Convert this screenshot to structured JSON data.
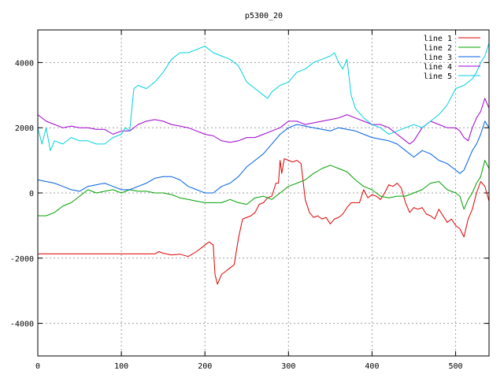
{
  "chart_data": {
    "type": "line",
    "title": "p5300_20",
    "xlabel": "",
    "ylabel": "",
    "xlim": [
      0,
      540
    ],
    "ylim": [
      -5000,
      5000
    ],
    "x_ticks": [
      0,
      100,
      200,
      300,
      400,
      500
    ],
    "y_ticks": [
      -4000,
      -2000,
      0,
      2000,
      4000
    ],
    "x_tick_labels": [
      "0",
      "100",
      "200",
      "300",
      "400",
      "500"
    ],
    "y_tick_labels": [
      "-4000",
      "-2000",
      "0",
      "2000",
      "4000"
    ],
    "grid": true,
    "legend_position": "top-right",
    "series": [
      {
        "name": "line 1",
        "color": "#e00000",
        "x": [
          0,
          30,
          60,
          90,
          120,
          140,
          145,
          150,
          160,
          170,
          180,
          190,
          200,
          205,
          210,
          212,
          215,
          220,
          225,
          230,
          235,
          240,
          245,
          250,
          255,
          260,
          265,
          270,
          275,
          280,
          285,
          288,
          290,
          292,
          295,
          300,
          305,
          310,
          315,
          320,
          325,
          330,
          335,
          340,
          345,
          350,
          355,
          360,
          365,
          370,
          375,
          380,
          385,
          390,
          395,
          400,
          405,
          410,
          415,
          420,
          425,
          430,
          435,
          440,
          445,
          450,
          455,
          460,
          465,
          470,
          475,
          480,
          485,
          490,
          495,
          500,
          505,
          510,
          515,
          520,
          525,
          530,
          535,
          540
        ],
        "values": [
          -1870,
          -1870,
          -1870,
          -1870,
          -1870,
          -1870,
          -1800,
          -1850,
          -1900,
          -1880,
          -1950,
          -1800,
          -1600,
          -1500,
          -1600,
          -2500,
          -2800,
          -2500,
          -2400,
          -2300,
          -2200,
          -1400,
          -800,
          -750,
          -700,
          -600,
          -350,
          -300,
          -150,
          -100,
          300,
          300,
          1000,
          600,
          1050,
          1000,
          950,
          1000,
          900,
          -200,
          -600,
          -750,
          -700,
          -800,
          -750,
          -950,
          -800,
          -750,
          -650,
          -450,
          -300,
          -300,
          -300,
          100,
          -150,
          -50,
          -100,
          -200,
          0,
          250,
          200,
          300,
          150,
          -300,
          -600,
          -450,
          -500,
          -450,
          -650,
          -700,
          -800,
          -500,
          -700,
          -900,
          -800,
          -1000,
          -1100,
          -1350,
          -800,
          -500,
          0,
          350,
          200,
          -250
        ]
      },
      {
        "name": "line 2",
        "color": "#00a000",
        "x": [
          0,
          10,
          20,
          30,
          40,
          50,
          60,
          70,
          80,
          90,
          100,
          110,
          120,
          130,
          140,
          150,
          160,
          170,
          180,
          190,
          200,
          210,
          220,
          230,
          240,
          250,
          260,
          270,
          280,
          290,
          300,
          310,
          320,
          330,
          340,
          350,
          360,
          370,
          380,
          390,
          400,
          410,
          420,
          430,
          440,
          450,
          460,
          470,
          480,
          490,
          500,
          505,
          510,
          515,
          520,
          525,
          530,
          535,
          540
        ],
        "values": [
          -700,
          -700,
          -600,
          -400,
          -300,
          -100,
          100,
          0,
          50,
          100,
          0,
          100,
          50,
          50,
          0,
          0,
          -50,
          -150,
          -200,
          -250,
          -300,
          -300,
          -300,
          -200,
          -300,
          -350,
          -150,
          -100,
          -200,
          0,
          200,
          300,
          400,
          600,
          750,
          850,
          750,
          650,
          400,
          200,
          100,
          -100,
          -150,
          -100,
          -100,
          0,
          100,
          300,
          350,
          100,
          0,
          -100,
          -500,
          -200,
          0,
          300,
          500,
          1000,
          750
        ]
      },
      {
        "name": "line 3",
        "color": "#0060e0",
        "x": [
          0,
          10,
          20,
          30,
          40,
          50,
          60,
          70,
          80,
          90,
          100,
          110,
          120,
          130,
          140,
          150,
          160,
          170,
          180,
          190,
          200,
          210,
          220,
          230,
          240,
          250,
          260,
          270,
          280,
          290,
          300,
          310,
          320,
          330,
          340,
          350,
          360,
          370,
          380,
          390,
          400,
          410,
          420,
          430,
          440,
          450,
          460,
          470,
          480,
          490,
          500,
          505,
          510,
          515,
          520,
          525,
          530,
          535,
          540
        ],
        "values": [
          400,
          350,
          300,
          200,
          100,
          50,
          200,
          250,
          300,
          200,
          100,
          100,
          200,
          300,
          450,
          500,
          500,
          400,
          200,
          100,
          0,
          0,
          200,
          300,
          500,
          800,
          1000,
          1200,
          1500,
          1800,
          2000,
          2100,
          2050,
          2000,
          1950,
          1900,
          2000,
          1950,
          1900,
          1800,
          1700,
          1650,
          1600,
          1500,
          1300,
          1100,
          1300,
          1200,
          1000,
          900,
          700,
          600,
          700,
          1000,
          1300,
          1500,
          1800,
          2200,
          2000
        ]
      },
      {
        "name": "line 4",
        "color": "#a000d0",
        "x": [
          0,
          10,
          20,
          30,
          40,
          50,
          60,
          70,
          80,
          90,
          100,
          110,
          120,
          130,
          140,
          150,
          160,
          170,
          180,
          190,
          200,
          210,
          220,
          230,
          240,
          250,
          260,
          270,
          280,
          290,
          300,
          310,
          320,
          330,
          340,
          350,
          360,
          370,
          380,
          390,
          400,
          410,
          420,
          430,
          440,
          445,
          450,
          455,
          460,
          470,
          480,
          490,
          500,
          505,
          510,
          515,
          520,
          525,
          530,
          535,
          540
        ],
        "values": [
          2400,
          2200,
          2100,
          2000,
          2050,
          2000,
          2000,
          1950,
          1950,
          1800,
          1900,
          1900,
          2100,
          2200,
          2250,
          2200,
          2100,
          2050,
          2000,
          1900,
          1800,
          1750,
          1600,
          1550,
          1600,
          1700,
          1700,
          1800,
          1900,
          2000,
          2200,
          2200,
          2100,
          2150,
          2200,
          2250,
          2300,
          2400,
          2300,
          2200,
          2100,
          2100,
          2000,
          1800,
          1600,
          1500,
          1600,
          1800,
          2000,
          2200,
          2100,
          2000,
          2000,
          1900,
          1700,
          1600,
          2000,
          2300,
          2500,
          2900,
          2600
        ]
      },
      {
        "name": "line 5",
        "color": "#00d0e0",
        "x": [
          0,
          5,
          10,
          15,
          20,
          30,
          40,
          50,
          60,
          70,
          80,
          90,
          100,
          105,
          110,
          115,
          120,
          130,
          140,
          150,
          160,
          170,
          180,
          190,
          200,
          210,
          220,
          230,
          240,
          250,
          255,
          260,
          270,
          275,
          280,
          290,
          300,
          310,
          320,
          330,
          340,
          350,
          355,
          360,
          365,
          370,
          375,
          380,
          390,
          400,
          410,
          420,
          430,
          440,
          450,
          460,
          470,
          480,
          490,
          500,
          510,
          520,
          525,
          530,
          535,
          540
        ],
        "values": [
          2000,
          1500,
          2000,
          1300,
          1600,
          1500,
          1700,
          1600,
          1600,
          1500,
          1500,
          1700,
          1800,
          2000,
          1900,
          3200,
          3300,
          3200,
          3400,
          3700,
          4100,
          4300,
          4300,
          4400,
          4500,
          4300,
          4200,
          4100,
          3900,
          3400,
          3300,
          3200,
          3000,
          2900,
          3100,
          3300,
          3400,
          3700,
          3800,
          4000,
          4100,
          4200,
          4300,
          4000,
          3800,
          4100,
          3000,
          2600,
          2300,
          2100,
          2000,
          1800,
          1900,
          2000,
          2100,
          2000,
          2200,
          2400,
          2700,
          3200,
          3300,
          3500,
          3700,
          4000,
          4200,
          4600
        ]
      }
    ]
  }
}
